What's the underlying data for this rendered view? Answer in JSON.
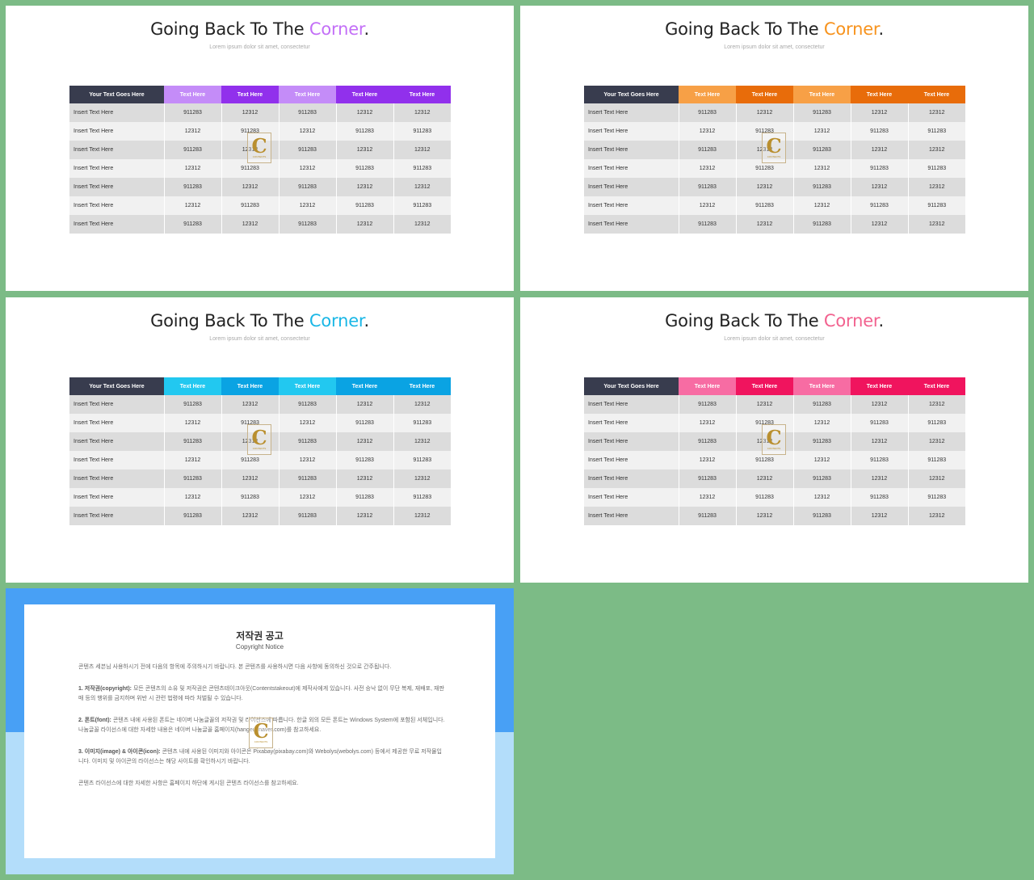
{
  "slides": [
    {
      "title_prefix": "Going Back To The ",
      "title_accent": "Corner",
      "title_suffix": ".",
      "subtitle": "Lorem ipsum dolor sit amet, consectetur",
      "accent_color": "#c36ff7",
      "header_colors": [
        "#c48cf8",
        "#9130ec",
        "#c48cf8",
        "#9130ec",
        "#9130ec"
      ],
      "table": {
        "headers": [
          "Your Text Goes Here",
          "Text Here",
          "Text Here",
          "Text Here",
          "Text Here",
          "Text Here"
        ],
        "rows": [
          [
            "Insert Text Here",
            "911283",
            "12312",
            "911283",
            "12312",
            "12312"
          ],
          [
            "Insert Text Here",
            "12312",
            "911283",
            "12312",
            "911283",
            "911283"
          ],
          [
            "Insert Text Here",
            "911283",
            "12312",
            "911283",
            "12312",
            "12312"
          ],
          [
            "Insert Text Here",
            "12312",
            "911283",
            "12312",
            "911283",
            "911283"
          ],
          [
            "Insert Text Here",
            "911283",
            "12312",
            "911283",
            "12312",
            "12312"
          ],
          [
            "Insert Text Here",
            "12312",
            "911283",
            "12312",
            "911283",
            "911283"
          ],
          [
            "Insert Text Here",
            "911283",
            "12312",
            "911283",
            "12312",
            "12312"
          ]
        ]
      }
    },
    {
      "title_prefix": "Going Back To The ",
      "title_accent": "Corner",
      "title_suffix": ".",
      "subtitle": "Lorem ipsum dolor sit amet, consectetur",
      "accent_color": "#f7931e",
      "header_colors": [
        "#f7a046",
        "#e86c0a",
        "#f7a046",
        "#e86c0a",
        "#e86c0a"
      ],
      "table": {
        "headers": [
          "Your Text Goes Here",
          "Text Here",
          "Text Here",
          "Text Here",
          "Text Here",
          "Text Here"
        ],
        "rows": [
          [
            "Insert Text Here",
            "911283",
            "12312",
            "911283",
            "12312",
            "12312"
          ],
          [
            "Insert Text Here",
            "12312",
            "911283",
            "12312",
            "911283",
            "911283"
          ],
          [
            "Insert Text Here",
            "911283",
            "12312",
            "911283",
            "12312",
            "12312"
          ],
          [
            "Insert Text Here",
            "12312",
            "911283",
            "12312",
            "911283",
            "911283"
          ],
          [
            "Insert Text Here",
            "911283",
            "12312",
            "911283",
            "12312",
            "12312"
          ],
          [
            "Insert Text Here",
            "12312",
            "911283",
            "12312",
            "911283",
            "911283"
          ],
          [
            "Insert Text Here",
            "911283",
            "12312",
            "911283",
            "12312",
            "12312"
          ]
        ]
      }
    },
    {
      "title_prefix": "Going Back To The ",
      "title_accent": "Corner",
      "title_suffix": ".",
      "subtitle": "Lorem ipsum dolor sit amet, consectetur",
      "accent_color": "#1ab7e6",
      "header_colors": [
        "#22c8f0",
        "#0aa3e3",
        "#22c8f0",
        "#0aa3e3",
        "#0aa3e3"
      ],
      "table": {
        "headers": [
          "Your Text Goes Here",
          "Text Here",
          "Text Here",
          "Text Here",
          "Text Here",
          "Text Here"
        ],
        "rows": [
          [
            "Insert Text Here",
            "911283",
            "12312",
            "911283",
            "12312",
            "12312"
          ],
          [
            "Insert Text Here",
            "12312",
            "911283",
            "12312",
            "911283",
            "911283"
          ],
          [
            "Insert Text Here",
            "911283",
            "12312",
            "911283",
            "12312",
            "12312"
          ],
          [
            "Insert Text Here",
            "12312",
            "911283",
            "12312",
            "911283",
            "911283"
          ],
          [
            "Insert Text Here",
            "911283",
            "12312",
            "911283",
            "12312",
            "12312"
          ],
          [
            "Insert Text Here",
            "12312",
            "911283",
            "12312",
            "911283",
            "911283"
          ],
          [
            "Insert Text Here",
            "911283",
            "12312",
            "911283",
            "12312",
            "12312"
          ]
        ]
      }
    },
    {
      "title_prefix": "Going Back To The ",
      "title_accent": "Corner",
      "title_suffix": ".",
      "subtitle": "Lorem ipsum dolor sit amet, consectetur",
      "accent_color": "#f2628f",
      "header_colors": [
        "#f76ca3",
        "#f0145e",
        "#f76ca3",
        "#f0145e",
        "#f0145e"
      ],
      "table": {
        "headers": [
          "Your Text Goes Here",
          "Text Here",
          "Text Here",
          "Text Here",
          "Text Here",
          "Text Here"
        ],
        "rows": [
          [
            "Insert Text Here",
            "911283",
            "12312",
            "911283",
            "12312",
            "12312"
          ],
          [
            "Insert Text Here",
            "12312",
            "911283",
            "12312",
            "911283",
            "911283"
          ],
          [
            "Insert Text Here",
            "911283",
            "12312",
            "911283",
            "12312",
            "12312"
          ],
          [
            "Insert Text Here",
            "12312",
            "911283",
            "12312",
            "911283",
            "911283"
          ],
          [
            "Insert Text Here",
            "911283",
            "12312",
            "911283",
            "12312",
            "12312"
          ],
          [
            "Insert Text Here",
            "12312",
            "911283",
            "12312",
            "911283",
            "911283"
          ],
          [
            "Insert Text Here",
            "911283",
            "12312",
            "911283",
            "12312",
            "12312"
          ]
        ]
      }
    }
  ],
  "notice": {
    "title": "저작권 공고",
    "subtitle": "Copyright Notice",
    "intro": "콘텐츠 세븐님 사용하시기 전에 다음의 항목에 주의하시기 바랍니다. 본 콘텐츠를 사용하시면 다음 사항에 동의하신 것으로 간주됩니다.",
    "item1_label": "1. 저작권(copyright):",
    "item1_text": "모든 콘텐츠의 소유 및 저작권은 콘텐츠테이크아웃(Contentstakeout)에 제작사에게 있습니다. 사전 승낙 없이 무단 복제, 재배포, 재판매 등의 행위를 금지하며 위반 시 관련 법령에 따라 처벌될 수 있습니다.",
    "item2_label": "2. 폰트(font):",
    "item2_text": "콘텐츠 내에 사용된 폰트는 네이버 나눔글꼴의 저작권 및 라이선스에 따릅니다. 한글 외의 모든 폰트는 Windows System에 포함된 서체입니다. 나눔글꼴 라이선스에 대한 자세한 내용은 네이버 나눔글꼴 홈페이지(hangeul.naver.com)를 참고하세요.",
    "item3_label": "3. 이미지(image) & 아이콘(icon):",
    "item3_text": "콘텐츠 내에 사용된 이미지와 아이콘은 Pixabay(pixabay.com)와 Webolys(webolys.com) 등에서 제공한 무료 저작물입니다. 이미지 및 아이콘의 라이선스는 해당 사이트를 확인하시기 바랍니다.",
    "outro": "콘텐츠 라이선스에 대한 자세한 사항은 홈페이지 하단에 게시된 콘텐츠 라이선스를 참고하세요."
  },
  "watermark": {
    "letter": "C",
    "text": "CONTENTS"
  }
}
